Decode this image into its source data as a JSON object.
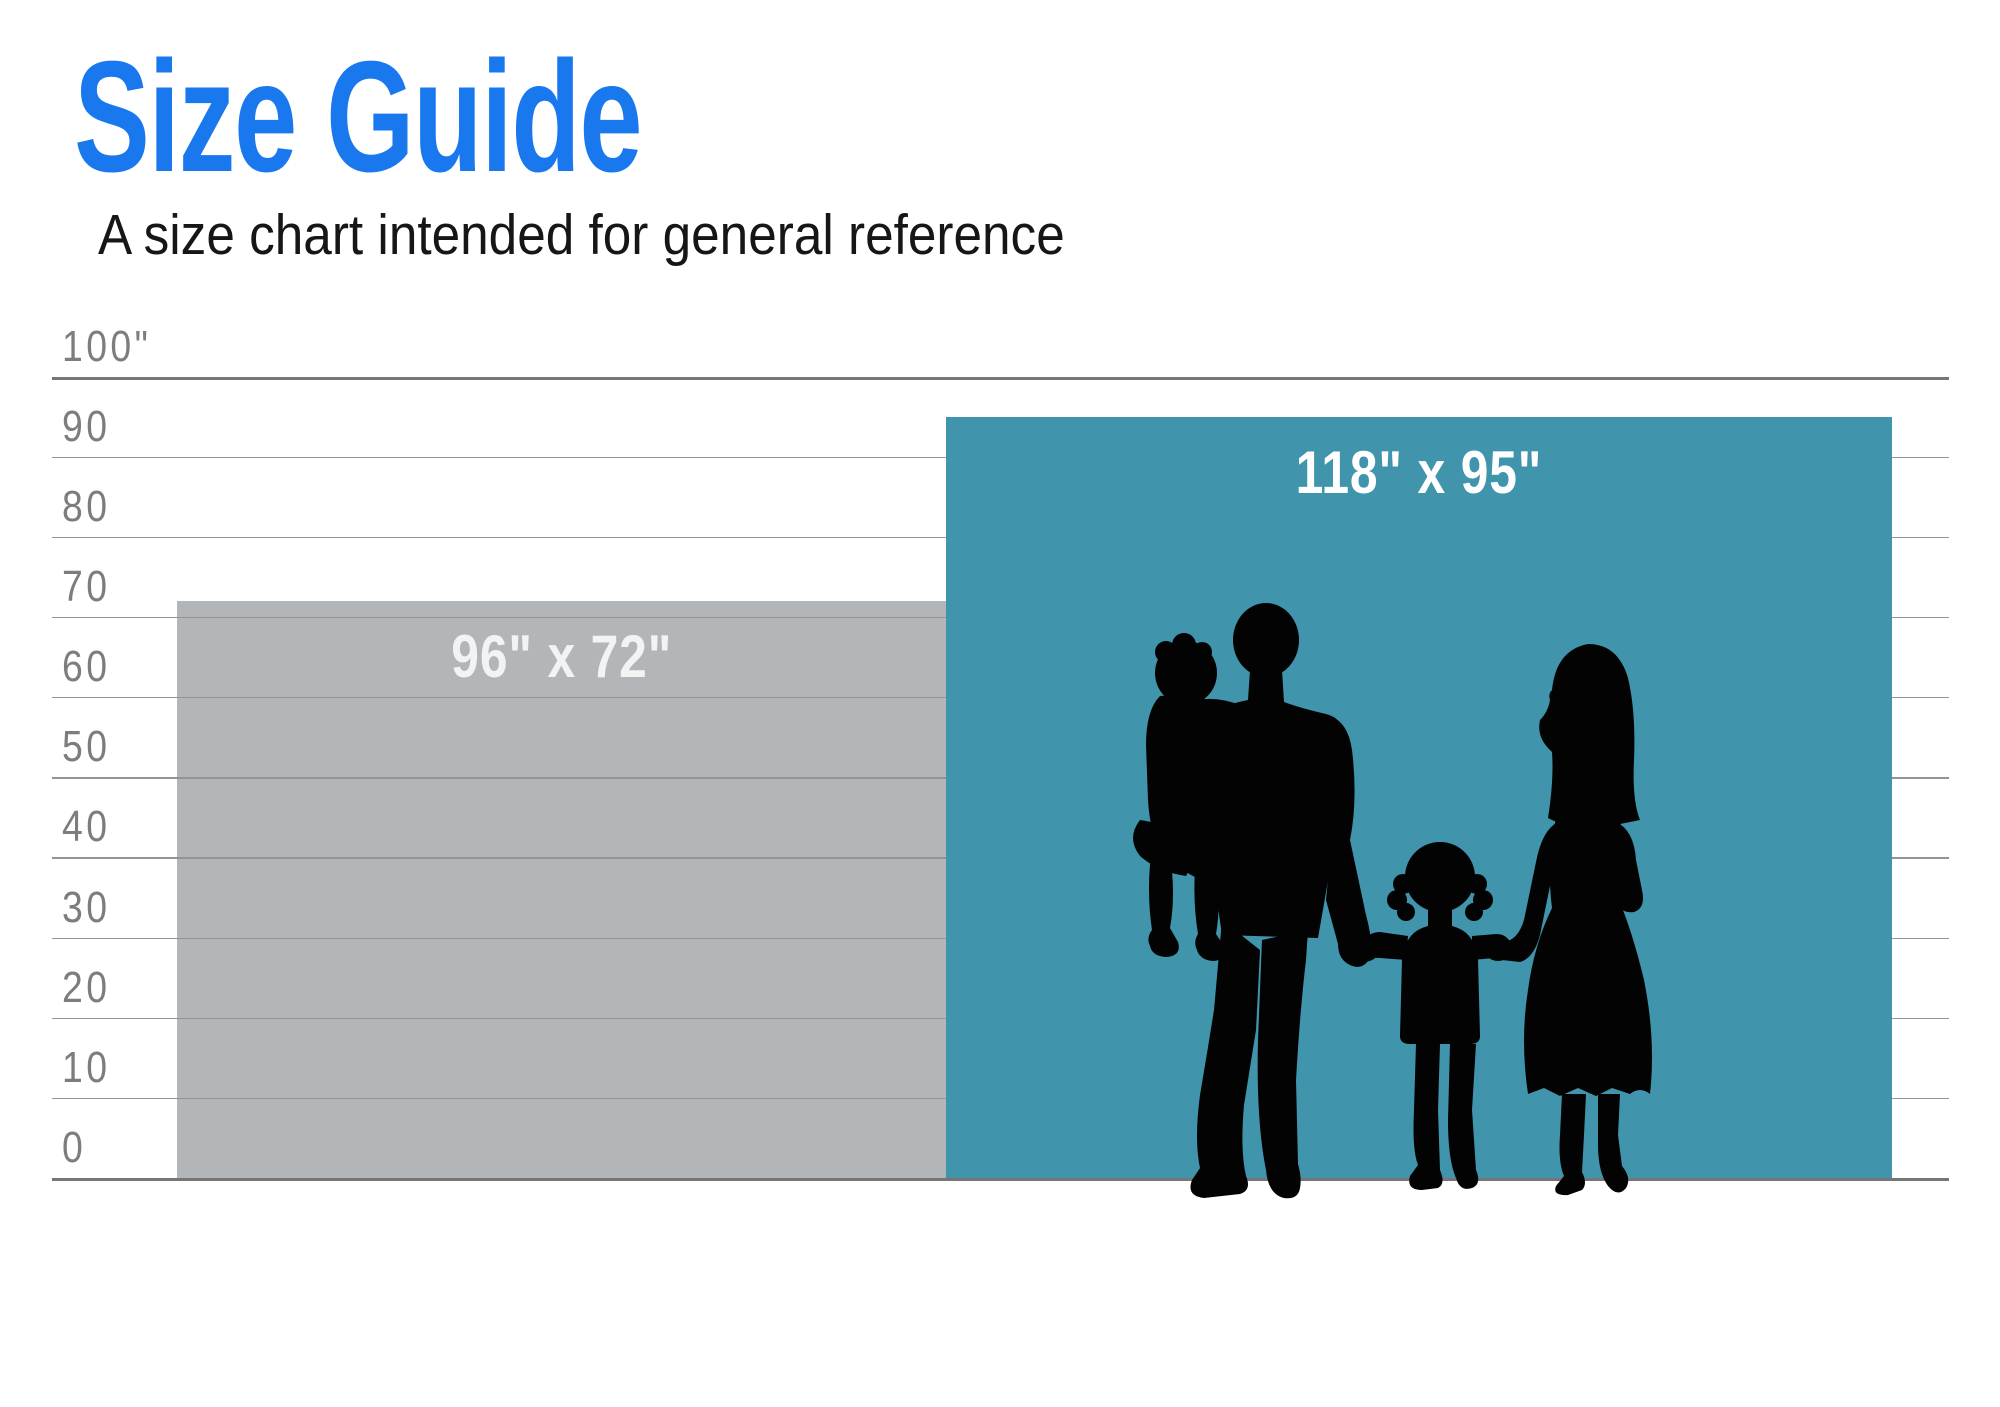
{
  "header": {
    "title": "Size Guide",
    "subtitle": "A size chart intended for general reference",
    "title_color": "#1a78ee",
    "subtitle_color": "#161616"
  },
  "colors": {
    "background": "#ffffff",
    "grid_minor": "#949494",
    "grid_major": "#767676",
    "axis_text": "#7d7d7d",
    "silhouette": "#030303"
  },
  "chart_data": {
    "type": "bar",
    "title": "Size Guide",
    "subtitle": "A size chart intended for general reference",
    "unit": "inches",
    "ylim": [
      0,
      100
    ],
    "grid": true,
    "y_ticks": [
      {
        "value": 100,
        "label": "100\""
      },
      {
        "value": 90,
        "label": "90"
      },
      {
        "value": 80,
        "label": "80"
      },
      {
        "value": 70,
        "label": "70"
      },
      {
        "value": 60,
        "label": "60"
      },
      {
        "value": 50,
        "label": "50"
      },
      {
        "value": 40,
        "label": "40"
      },
      {
        "value": 30,
        "label": "30"
      },
      {
        "value": 20,
        "label": "20"
      },
      {
        "value": 10,
        "label": "10"
      },
      {
        "value": 0,
        "label": "0"
      }
    ],
    "bars": [
      {
        "id": "screen-96x72",
        "label": "96\" x 72\"",
        "width_in": 96,
        "height_in": 72,
        "color": "#b3b6b9",
        "label_color": "#f2f3f3"
      },
      {
        "id": "screen-118x95",
        "label": "118\" x 95\"",
        "width_in": 118,
        "height_in": 95,
        "color": "#4094ac",
        "label_color": "#ffffff"
      }
    ],
    "annotations": [
      {
        "type": "silhouette",
        "description": "Family of four silhouette shown for scale",
        "color": "#030303"
      }
    ]
  }
}
